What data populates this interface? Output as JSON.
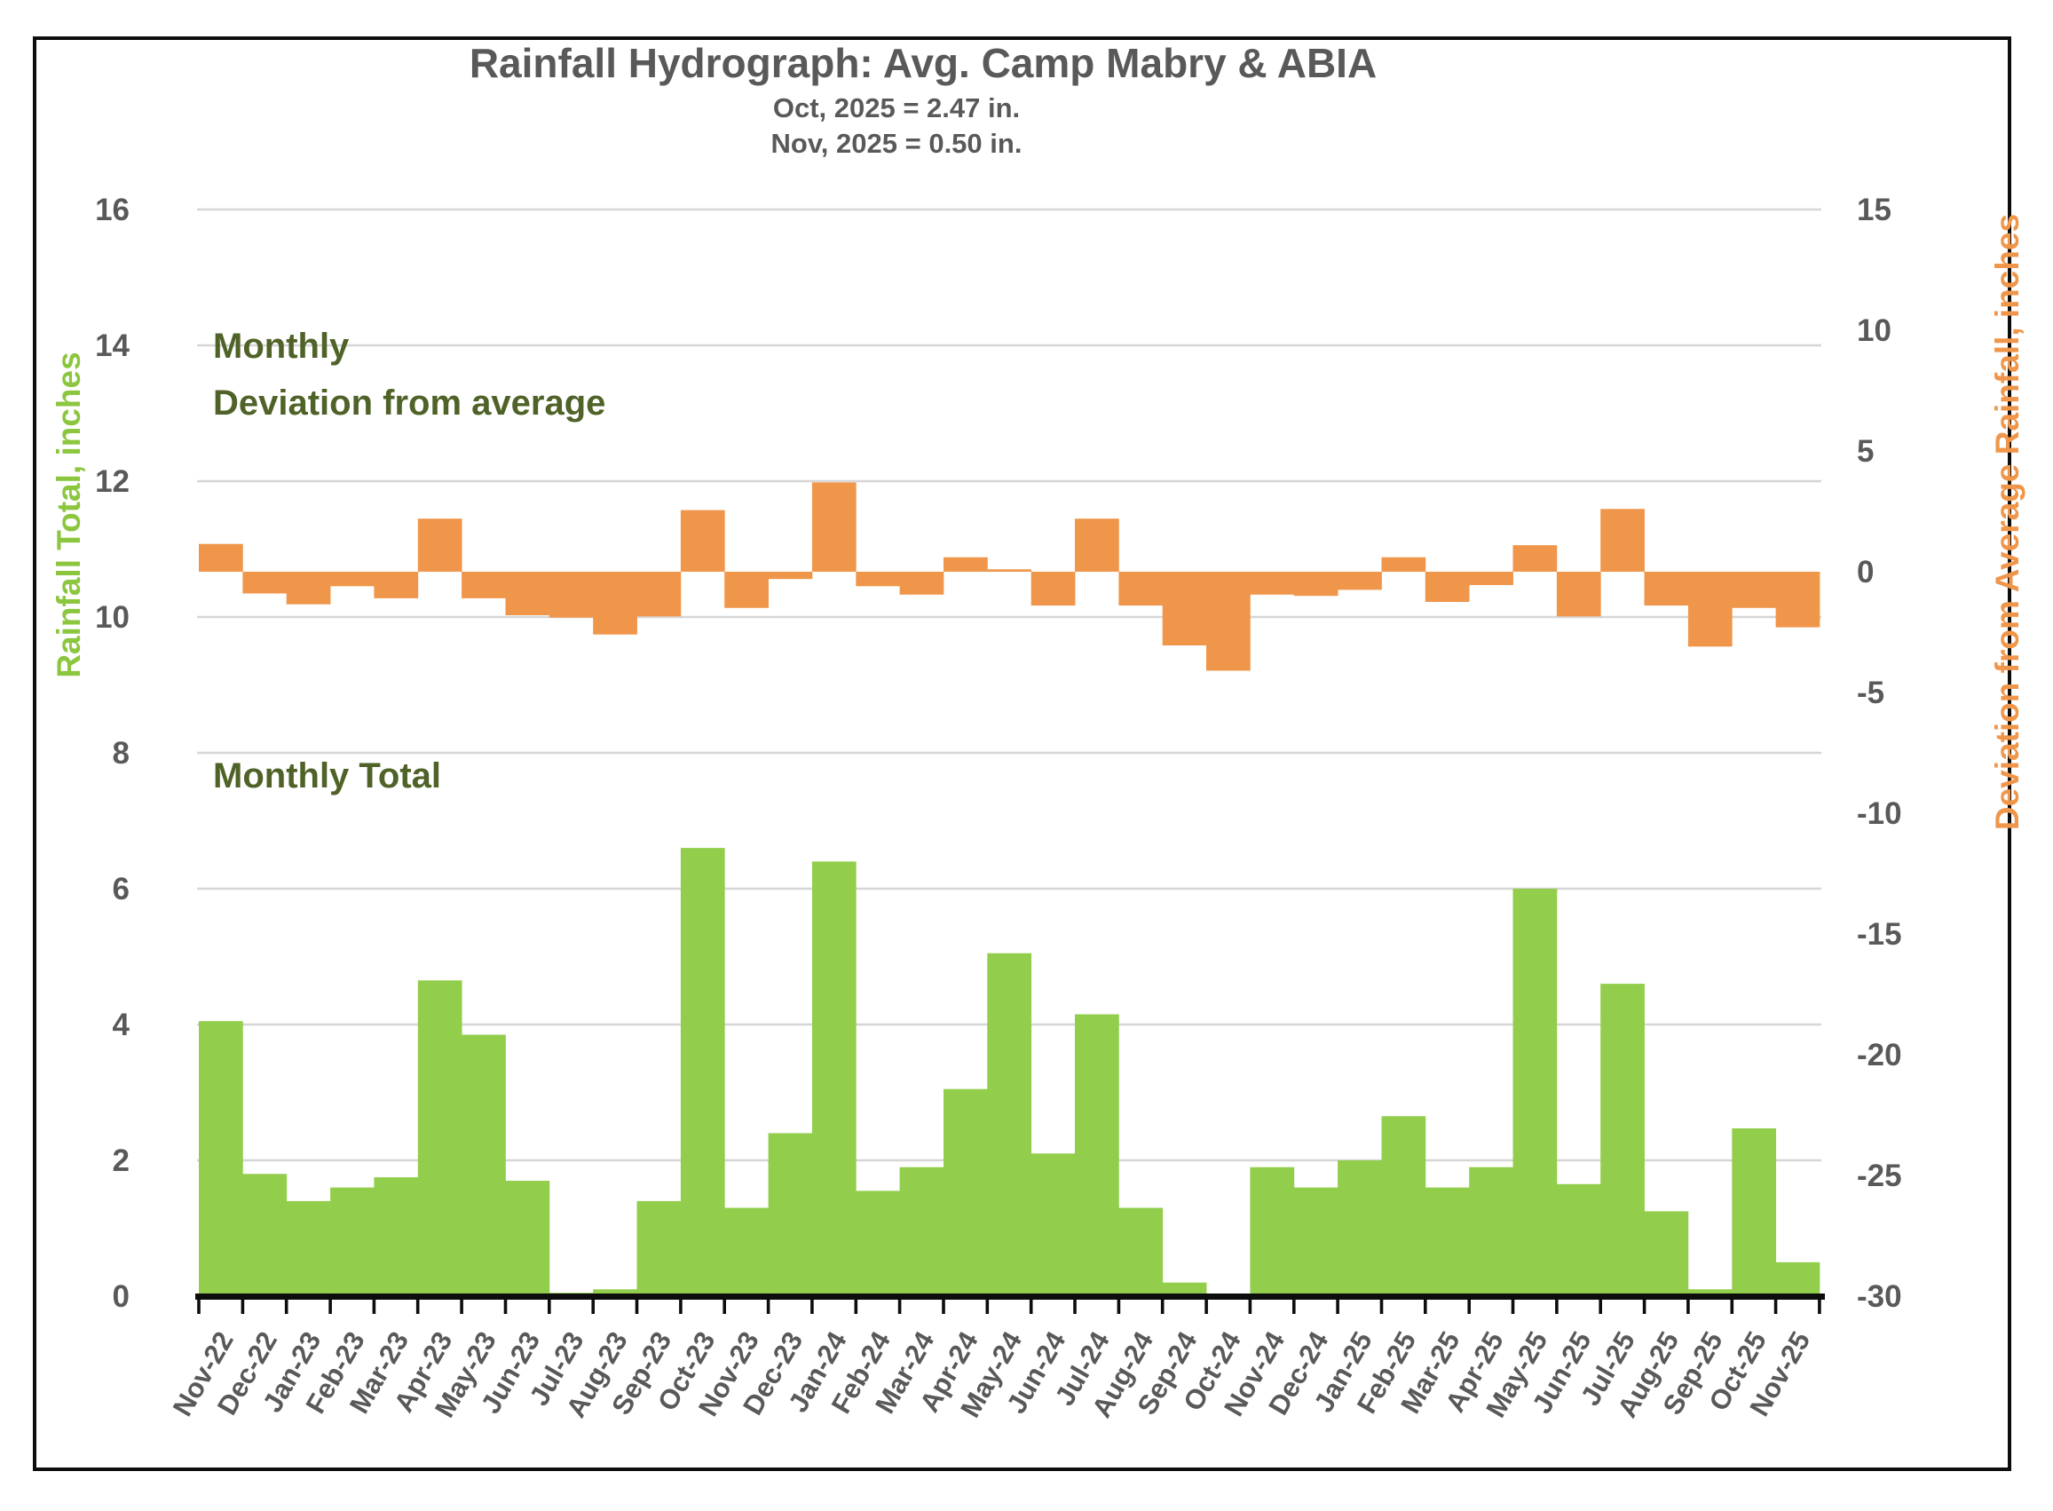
{
  "title": "Rainfall Hydrograph: Avg. Camp Mabry & ABIA",
  "subtitle_line1": "Oct, 2025 = 2.47 in.",
  "subtitle_line2": "Nov, 2025 = 0.50 in.",
  "annotations": {
    "deviation_line1": "Monthly",
    "deviation_line2": "Deviation from average",
    "total_label": "Monthly Total"
  },
  "colors": {
    "bar_green": "#92CE4C",
    "bar_orange": "#F0964B",
    "text_gray": "#595959",
    "text_olive": "#4F6228",
    "gridline": "#D6D6D6",
    "axis_black": "#0d0d0d"
  },
  "chart_data": {
    "type": "bar",
    "title": "Rainfall Hydrograph: Avg. Camp Mabry & ABIA",
    "categories": [
      "Nov-22",
      "Dec-22",
      "Jan-23",
      "Feb-23",
      "Mar-23",
      "Apr-23",
      "May-23",
      "Jun-23",
      "Jul-23",
      "Aug-23",
      "Sep-23",
      "Oct-23",
      "Nov-23",
      "Dec-23",
      "Jan-24",
      "Feb-24",
      "Mar-24",
      "Apr-24",
      "May-24",
      "Jun-24",
      "Jul-24",
      "Aug-24",
      "Sep-24",
      "Oct-24",
      "Nov-24",
      "Dec-24",
      "Jan-25",
      "Feb-25",
      "Mar-25",
      "Apr-25",
      "May-25",
      "Jun-25",
      "Jul-25",
      "Aug-25",
      "Sep-25",
      "Oct-25",
      "Nov-25"
    ],
    "series": [
      {
        "name": "Monthly Total",
        "axis": "left",
        "color": "#92CE4C",
        "values": [
          4.05,
          1.8,
          1.4,
          1.6,
          1.75,
          4.65,
          3.85,
          1.7,
          0.05,
          0.1,
          1.4,
          6.6,
          1.3,
          2.4,
          6.4,
          1.55,
          1.9,
          3.05,
          5.05,
          2.1,
          4.15,
          1.3,
          0.2,
          0.0,
          1.9,
          1.6,
          2.0,
          2.65,
          1.6,
          1.9,
          6.0,
          1.65,
          4.6,
          1.25,
          0.1,
          2.47,
          0.5
        ]
      },
      {
        "name": "Monthly Deviation from average",
        "axis": "right",
        "color": "#F0964B",
        "values": [
          1.15,
          -0.9,
          -1.35,
          -0.6,
          -1.1,
          2.2,
          -1.1,
          -1.8,
          -1.9,
          -2.6,
          -1.85,
          2.55,
          -1.5,
          -0.3,
          3.7,
          -0.6,
          -0.95,
          0.6,
          0.1,
          -1.4,
          2.2,
          -1.4,
          -3.05,
          -4.1,
          -0.95,
          -1.0,
          -0.75,
          0.6,
          -1.25,
          -0.55,
          1.1,
          -1.85,
          2.6,
          -1.4,
          -3.1,
          -1.5,
          -2.3
        ]
      }
    ],
    "left_axis": {
      "label": "Rainfall Total, inches",
      "ticks": [
        16,
        14,
        12,
        10,
        8,
        6,
        4,
        2,
        0
      ],
      "range": [
        0,
        16
      ]
    },
    "right_axis": {
      "label": "Deviation from Average Rainfall, inches",
      "ticks": [
        15,
        10,
        5,
        0,
        -5,
        -10,
        -15,
        -20,
        -25,
        -30
      ],
      "range": [
        -30,
        15
      ]
    },
    "grid": true,
    "legend_position": "none (in-plot text annotations)"
  }
}
